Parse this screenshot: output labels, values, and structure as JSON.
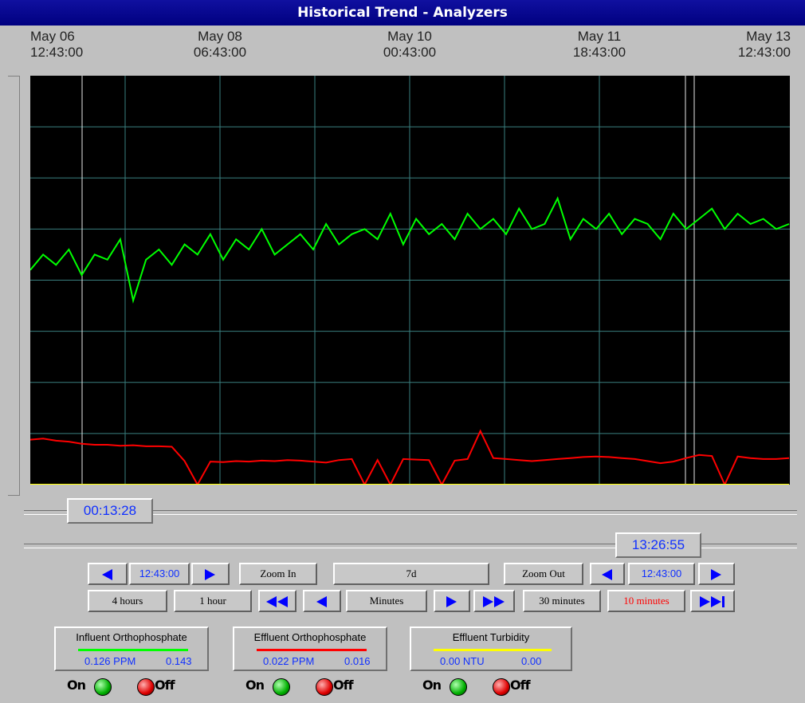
{
  "title": "Historical Trend - Analyzers",
  "time_labels": [
    {
      "date": "May 06",
      "time": "12:43:00"
    },
    {
      "date": "May 08",
      "time": "06:43:00"
    },
    {
      "date": "May 10",
      "time": "00:43:00"
    },
    {
      "date": "May 11",
      "time": "18:43:00"
    },
    {
      "date": "May 13",
      "time": "12:43:00"
    }
  ],
  "trend": {
    "ylim": [
      0,
      8
    ],
    "yticks": [
      1,
      2,
      3,
      4,
      5,
      6,
      7
    ],
    "xticks": [
      1,
      2,
      3,
      4,
      5,
      6
    ],
    "xlim": [
      0,
      8
    ],
    "grid": true
  },
  "pens": [
    {
      "name": "Influent Orthophosphate",
      "color": "#00ff00",
      "value": "0.126 PPM",
      "value_2": "0.143",
      "values": [
        4.2,
        4.5,
        4.3,
        4.6,
        4.1,
        4.5,
        4.4,
        4.8,
        3.6,
        4.4,
        4.6,
        4.3,
        4.7,
        4.5,
        4.9,
        4.4,
        4.8,
        4.6,
        5.0,
        4.5,
        4.7,
        4.9,
        4.6,
        5.1,
        4.7,
        4.9,
        5.0,
        4.8,
        5.3,
        4.7,
        5.2,
        4.9,
        5.1,
        4.8,
        5.3,
        5.0,
        5.2,
        4.9,
        5.4,
        5.0,
        5.1,
        5.6,
        4.8,
        5.2,
        5.0,
        5.3,
        4.9,
        5.2,
        5.1,
        4.8,
        5.3,
        5.0,
        5.2,
        5.4,
        5.0,
        5.3,
        5.1,
        5.2,
        5.0,
        5.1
      ]
    },
    {
      "name": "Effluent Orthophosphate",
      "color": "#ff0000",
      "value": "0.022 PPM",
      "value_2": "0.016",
      "values": [
        0.88,
        0.9,
        0.86,
        0.84,
        0.8,
        0.78,
        0.78,
        0.76,
        0.77,
        0.75,
        0.75,
        0.74,
        0.46,
        0.0,
        0.45,
        0.44,
        0.46,
        0.45,
        0.47,
        0.46,
        0.48,
        0.47,
        0.45,
        0.43,
        0.48,
        0.5,
        0.0,
        0.48,
        0.0,
        0.5,
        0.49,
        0.48,
        0.0,
        0.47,
        0.5,
        1.05,
        0.52,
        0.5,
        0.48,
        0.46,
        0.48,
        0.5,
        0.52,
        0.54,
        0.55,
        0.54,
        0.52,
        0.5,
        0.46,
        0.42,
        0.45,
        0.52,
        0.58,
        0.56,
        0.0,
        0.55,
        0.52,
        0.5,
        0.5,
        0.52
      ]
    },
    {
      "name": "Effluent Turbidity",
      "color": "#ffff00",
      "value": "0.00 NTU",
      "value_2": "0.00",
      "values": [
        0,
        0
      ]
    }
  ],
  "sliders": {
    "cursor_left": "00:13:28",
    "cursor_right": "13:26:55"
  },
  "controls": {
    "start_time": "12:43:00",
    "zoom_in": "Zoom In",
    "span": "7d",
    "zoom_out": "Zoom Out",
    "end_time": "12:43:00",
    "presets": [
      "4 hours",
      "1 hour",
      "Minutes",
      "30 minutes",
      "10 minutes"
    ]
  },
  "toggle": {
    "on": "On",
    "off": "Off"
  }
}
